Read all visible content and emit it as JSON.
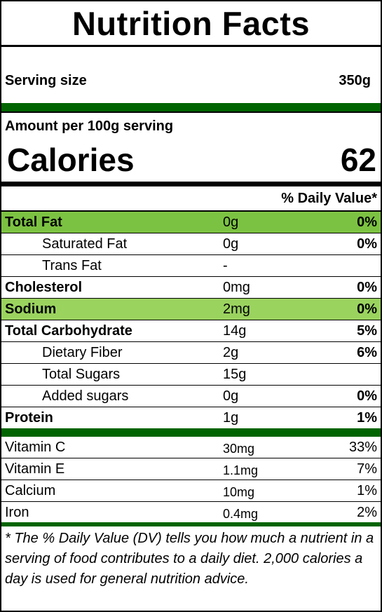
{
  "title": "Nutrition Facts",
  "serving": {
    "label": "Serving size",
    "value": "350g"
  },
  "amount_per": "Amount per 100g serving",
  "calories": {
    "label": "Calories",
    "value": "62"
  },
  "daily_value_header": "% Daily Value*",
  "colors": {
    "header_green": "#006400",
    "highlight_green": "#7cc242",
    "light_green": "#9bd35f"
  },
  "nutrients": [
    {
      "name": "Total Fat",
      "amount": "0g",
      "dv": "0%",
      "bold": true,
      "indent": false,
      "highlight": "#7cc242"
    },
    {
      "name": "Saturated Fat",
      "amount": "0g",
      "dv": "0%",
      "bold": false,
      "indent": true,
      "highlight": ""
    },
    {
      "name": "Trans Fat",
      "amount": "-",
      "dv": "",
      "bold": false,
      "indent": true,
      "highlight": ""
    },
    {
      "name": "Cholesterol",
      "amount": "0mg",
      "dv": "0%",
      "bold": true,
      "indent": false,
      "highlight": ""
    },
    {
      "name": "Sodium",
      "amount": "2mg",
      "dv": "0%",
      "bold": true,
      "indent": false,
      "highlight": "#9bd35f"
    },
    {
      "name": "Total Carbohydrate",
      "amount": "14g",
      "dv": "5%",
      "bold": true,
      "indent": false,
      "highlight": ""
    },
    {
      "name": "Dietary Fiber",
      "amount": "2g",
      "dv": "6%",
      "bold": false,
      "indent": true,
      "highlight": ""
    },
    {
      "name": "Total Sugars",
      "amount": "15g",
      "dv": "",
      "bold": false,
      "indent": true,
      "highlight": ""
    },
    {
      "name": "Added sugars",
      "amount": "0g",
      "dv": "0%",
      "bold": false,
      "indent": true,
      "highlight": ""
    },
    {
      "name": "Protein",
      "amount": "1g",
      "dv": "1%",
      "bold": true,
      "indent": false,
      "highlight": ""
    }
  ],
  "vitamins": [
    {
      "name": "Vitamin C",
      "amount": "30mg",
      "dv": "33%"
    },
    {
      "name": "Vitamin E",
      "amount": "1.1mg",
      "dv": "7%"
    },
    {
      "name": "Calcium",
      "amount": "10mg",
      "dv": "1%"
    },
    {
      "name": "Iron",
      "amount": "0.4mg",
      "dv": "2%"
    }
  ],
  "footnote": "* The % Daily Value (DV) tells you how much a nutrient in a serving of food contributes to a daily diet. 2,000 calories a day is used for general nutrition advice."
}
